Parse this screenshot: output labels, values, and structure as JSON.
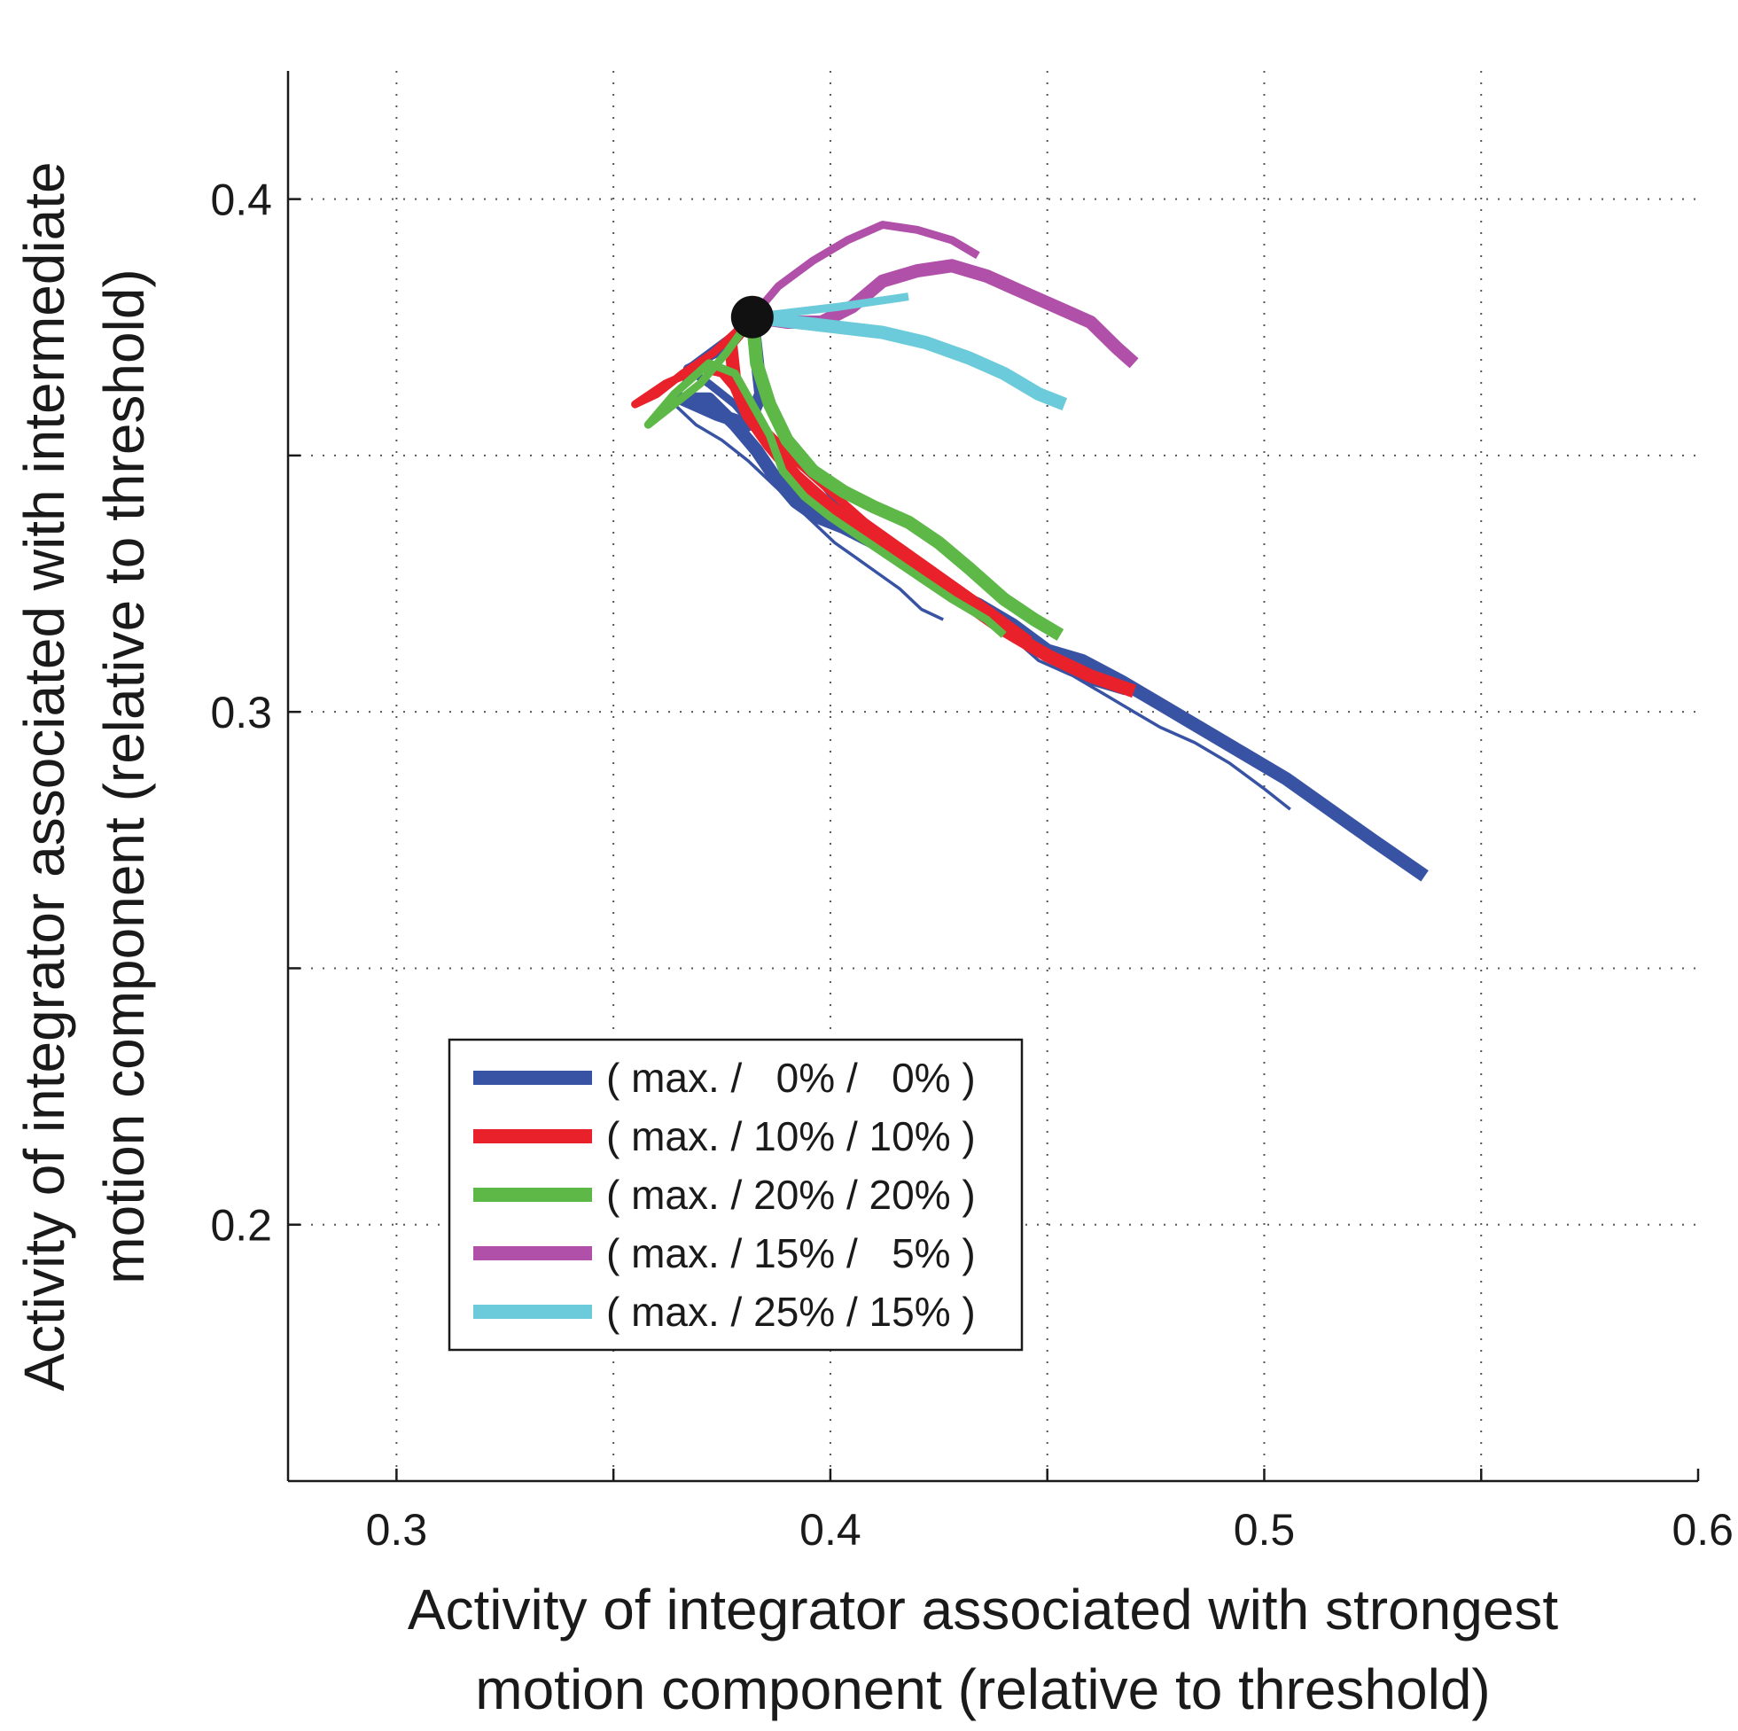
{
  "chart_data": {
    "type": "line",
    "title": "",
    "xlabel": [
      "Activity of integrator associated with strongest",
      "motion component (relative to threshold)"
    ],
    "ylabel": [
      "Activity of integrator associated with intermediate",
      "motion component (relative to threshold)"
    ],
    "xlim": [
      0.275,
      0.6
    ],
    "ylim": [
      0.15,
      0.425
    ],
    "xticks": [
      0.3,
      0.4,
      0.5,
      0.6
    ],
    "xtick_labels": [
      "0.3",
      "0.4",
      "0.5",
      "0.6"
    ],
    "yticks": [
      0.2,
      0.3,
      0.4
    ],
    "ytick_labels": [
      "0.2",
      "0.3",
      "0.4"
    ],
    "grid_x": [
      0.3,
      0.35,
      0.4,
      0.45,
      0.5,
      0.55
    ],
    "grid_y": [
      0.2,
      0.25,
      0.3,
      0.35,
      0.4
    ],
    "grid": true,
    "legend_position": "lower-left",
    "start_point": {
      "x": 0.382,
      "y": 0.377
    },
    "series": [
      {
        "name": "( max. /   0% /   0% )",
        "color": "#3953a4",
        "traces": [
          {
            "weight": "thick",
            "points": [
              [
                0.382,
                0.377
              ],
              [
                0.384,
                0.362
              ],
              [
                0.381,
                0.356
              ],
              [
                0.374,
                0.358
              ],
              [
                0.366,
                0.361
              ],
              [
                0.372,
                0.361
              ],
              [
                0.378,
                0.356
              ],
              [
                0.383,
                0.351
              ],
              [
                0.387,
                0.346
              ],
              [
                0.392,
                0.341
              ],
              [
                0.397,
                0.338
              ],
              [
                0.403,
                0.336
              ],
              [
                0.41,
                0.333
              ],
              [
                0.418,
                0.329
              ],
              [
                0.426,
                0.324
              ],
              [
                0.434,
                0.321
              ],
              [
                0.442,
                0.317
              ],
              [
                0.45,
                0.312
              ],
              [
                0.458,
                0.31
              ],
              [
                0.467,
                0.306
              ],
              [
                0.475,
                0.302
              ],
              [
                0.485,
                0.297
              ],
              [
                0.495,
                0.292
              ],
              [
                0.505,
                0.287
              ],
              [
                0.515,
                0.281
              ],
              [
                0.525,
                0.275
              ],
              [
                0.537,
                0.268
              ]
            ]
          },
          {
            "weight": "medium",
            "points": [
              [
                0.382,
                0.377
              ],
              [
                0.374,
                0.37
              ],
              [
                0.367,
                0.367
              ],
              [
                0.372,
                0.364
              ],
              [
                0.378,
                0.36
              ],
              [
                0.383,
                0.355
              ],
              [
                0.388,
                0.35
              ],
              [
                0.394,
                0.344
              ],
              [
                0.4,
                0.34
              ],
              [
                0.407,
                0.337
              ],
              [
                0.414,
                0.333
              ],
              [
                0.421,
                0.328
              ],
              [
                0.429,
                0.323
              ],
              [
                0.437,
                0.319
              ],
              [
                0.444,
                0.315
              ],
              [
                0.452,
                0.31
              ],
              [
                0.46,
                0.306
              ],
              [
                0.468,
                0.304
              ]
            ]
          },
          {
            "weight": "thin",
            "points": [
              [
                0.382,
                0.377
              ],
              [
                0.376,
                0.373
              ],
              [
                0.368,
                0.368
              ],
              [
                0.364,
                0.36
              ],
              [
                0.369,
                0.356
              ],
              [
                0.375,
                0.353
              ],
              [
                0.381,
                0.349
              ],
              [
                0.386,
                0.345
              ],
              [
                0.391,
                0.341
              ],
              [
                0.396,
                0.337
              ],
              [
                0.401,
                0.333
              ],
              [
                0.406,
                0.33
              ],
              [
                0.411,
                0.327
              ],
              [
                0.416,
                0.324
              ],
              [
                0.421,
                0.32
              ],
              [
                0.426,
                0.318
              ]
            ]
          },
          {
            "weight": "thin",
            "points": [
              [
                0.382,
                0.377
              ],
              [
                0.385,
                0.36
              ],
              [
                0.392,
                0.35
              ],
              [
                0.4,
                0.342
              ],
              [
                0.41,
                0.335
              ],
              [
                0.42,
                0.328
              ],
              [
                0.43,
                0.322
              ],
              [
                0.44,
                0.316
              ],
              [
                0.448,
                0.31
              ],
              [
                0.456,
                0.307
              ],
              [
                0.464,
                0.303
              ],
              [
                0.47,
                0.3
              ],
              [
                0.476,
                0.297
              ],
              [
                0.484,
                0.294
              ],
              [
                0.492,
                0.29
              ],
              [
                0.5,
                0.285
              ],
              [
                0.506,
                0.281
              ]
            ]
          }
        ]
      },
      {
        "name": "( max. / 10% / 10% )",
        "color": "#e8212a",
        "traces": [
          {
            "weight": "thick",
            "points": [
              [
                0.382,
                0.377
              ],
              [
                0.377,
                0.372
              ],
              [
                0.378,
                0.364
              ],
              [
                0.381,
                0.358
              ],
              [
                0.386,
                0.352
              ],
              [
                0.392,
                0.346
              ],
              [
                0.4,
                0.34
              ],
              [
                0.41,
                0.334
              ],
              [
                0.42,
                0.328
              ],
              [
                0.43,
                0.322
              ],
              [
                0.44,
                0.316
              ],
              [
                0.45,
                0.311
              ],
              [
                0.46,
                0.307
              ],
              [
                0.47,
                0.304
              ]
            ]
          },
          {
            "weight": "medium",
            "points": [
              [
                0.382,
                0.377
              ],
              [
                0.373,
                0.37
              ],
              [
                0.366,
                0.366
              ],
              [
                0.36,
                0.362
              ],
              [
                0.355,
                0.36
              ],
              [
                0.362,
                0.364
              ],
              [
                0.37,
                0.367
              ],
              [
                0.375,
                0.366
              ],
              [
                0.38,
                0.361
              ],
              [
                0.385,
                0.355
              ],
              [
                0.392,
                0.349
              ],
              [
                0.4,
                0.343
              ],
              [
                0.408,
                0.337
              ],
              [
                0.418,
                0.331
              ],
              [
                0.428,
                0.325
              ],
              [
                0.438,
                0.319
              ],
              [
                0.446,
                0.314
              ]
            ]
          }
        ]
      },
      {
        "name": "( max. / 20% / 20% )",
        "color": "#5db848",
        "traces": [
          {
            "weight": "thick",
            "points": [
              [
                0.382,
                0.377
              ],
              [
                0.383,
                0.368
              ],
              [
                0.386,
                0.36
              ],
              [
                0.39,
                0.353
              ],
              [
                0.396,
                0.347
              ],
              [
                0.403,
                0.343
              ],
              [
                0.41,
                0.34
              ],
              [
                0.418,
                0.337
              ],
              [
                0.425,
                0.333
              ],
              [
                0.432,
                0.328
              ],
              [
                0.44,
                0.322
              ],
              [
                0.447,
                0.318
              ],
              [
                0.453,
                0.315
              ]
            ]
          },
          {
            "weight": "medium",
            "points": [
              [
                0.382,
                0.377
              ],
              [
                0.376,
                0.37
              ],
              [
                0.37,
                0.364
              ],
              [
                0.364,
                0.36
              ],
              [
                0.358,
                0.356
              ],
              [
                0.364,
                0.362
              ],
              [
                0.372,
                0.368
              ],
              [
                0.378,
                0.366
              ],
              [
                0.382,
                0.36
              ],
              [
                0.386,
                0.354
              ],
              [
                0.389,
                0.347
              ],
              [
                0.394,
                0.342
              ],
              [
                0.4,
                0.338
              ],
              [
                0.407,
                0.334
              ],
              [
                0.414,
                0.33
              ],
              [
                0.421,
                0.326
              ],
              [
                0.428,
                0.322
              ],
              [
                0.436,
                0.318
              ],
              [
                0.44,
                0.315
              ]
            ]
          }
        ]
      },
      {
        "name": "( max. / 15% /   5% )",
        "color": "#b050a8",
        "traces": [
          {
            "weight": "thick",
            "points": [
              [
                0.382,
                0.377
              ],
              [
                0.39,
                0.376
              ],
              [
                0.398,
                0.376
              ],
              [
                0.405,
                0.379
              ],
              [
                0.412,
                0.384
              ],
              [
                0.42,
                0.386
              ],
              [
                0.428,
                0.387
              ],
              [
                0.436,
                0.385
              ],
              [
                0.444,
                0.382
              ],
              [
                0.452,
                0.379
              ],
              [
                0.46,
                0.376
              ],
              [
                0.466,
                0.371
              ],
              [
                0.47,
                0.368
              ]
            ]
          },
          {
            "weight": "medium",
            "points": [
              [
                0.382,
                0.377
              ],
              [
                0.388,
                0.383
              ],
              [
                0.396,
                0.388
              ],
              [
                0.404,
                0.392
              ],
              [
                0.412,
                0.395
              ],
              [
                0.42,
                0.394
              ],
              [
                0.428,
                0.392
              ],
              [
                0.434,
                0.389
              ]
            ]
          }
        ]
      },
      {
        "name": "( max. / 25% / 15% )",
        "color": "#6ccbda",
        "traces": [
          {
            "weight": "thick",
            "points": [
              [
                0.382,
                0.377
              ],
              [
                0.392,
                0.376
              ],
              [
                0.402,
                0.375
              ],
              [
                0.412,
                0.374
              ],
              [
                0.422,
                0.372
              ],
              [
                0.432,
                0.369
              ],
              [
                0.44,
                0.366
              ],
              [
                0.448,
                0.362
              ],
              [
                0.454,
                0.36
              ]
            ]
          },
          {
            "weight": "medium",
            "points": [
              [
                0.382,
                0.377
              ],
              [
                0.392,
                0.378
              ],
              [
                0.402,
                0.379
              ],
              [
                0.41,
                0.38
              ],
              [
                0.418,
                0.381
              ]
            ]
          }
        ]
      }
    ]
  }
}
